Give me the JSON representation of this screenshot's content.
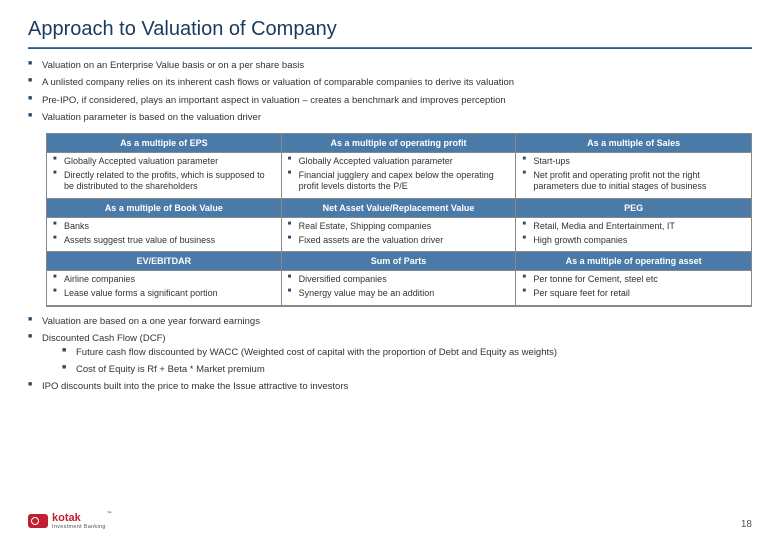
{
  "title": "Approach to Valuation of Company",
  "topBullets": [
    "Valuation on an Enterprise Value basis or on a per share basis",
    "A unlisted company relies on its inherent cash flows or valuation of comparable companies to derive its valuation",
    "Pre-IPO, if considered, plays an important aspect in valuation – creates a benchmark and improves perception",
    "Valuation parameter is based on the valuation driver"
  ],
  "grid": {
    "headerColor": "#4a7aa8",
    "rows": [
      {
        "headers": [
          "As a multiple of EPS",
          "As a multiple of operating profit",
          "As a multiple of Sales"
        ],
        "cells": [
          [
            "Globally Accepted valuation parameter",
            "Directly related to the profits, which is supposed to be distributed to the shareholders"
          ],
          [
            "Globally Accepted valuation parameter",
            "Financial jugglery and capex below the operating profit levels distorts the P/E"
          ],
          [
            "Start-ups",
            "Net profit and operating profit not the right parameters due to initial stages of business"
          ]
        ]
      },
      {
        "headers": [
          "As a multiple of Book Value",
          "Net Asset Value/Replacement Value",
          "PEG"
        ],
        "cells": [
          [
            "Banks",
            "Assets suggest true value of business"
          ],
          [
            "Real Estate, Shipping companies",
            "Fixed assets are the valuation driver"
          ],
          [
            "Retail, Media and Entertainment, IT",
            "High growth companies"
          ]
        ]
      },
      {
        "headers": [
          "EV/EBITDAR",
          "Sum of Parts",
          "As a multiple of operating asset"
        ],
        "cells": [
          [
            "Airline companies",
            "Lease value forms a significant portion"
          ],
          [
            "Diversified companies",
            "Synergy value may be an addition"
          ],
          [
            "Per tonne for Cement, steel etc",
            "Per square feet for retail"
          ]
        ]
      }
    ]
  },
  "lowerBullets": [
    {
      "text": "Valuation are based on a one year forward earnings"
    },
    {
      "text": "Discounted Cash Flow (DCF)",
      "sub": [
        "Future cash flow discounted by WACC (Weighted cost of capital with the proportion of Debt and Equity as weights)",
        "Cost of Equity is Rf + Beta * Market premium"
      ]
    },
    {
      "text": "IPO discounts built into the price to make the Issue attractive to investors"
    }
  ],
  "logo": {
    "brand": "kotak",
    "sub": "Investment Banking"
  },
  "pageNum": "18"
}
